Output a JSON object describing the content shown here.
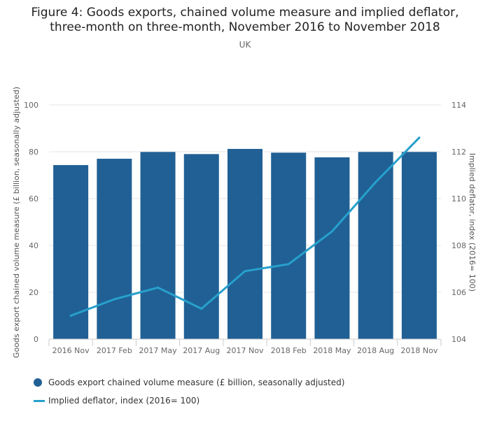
{
  "title_line1": "Figure 4: Goods exports, chained volume measure and implied deflator,",
  "title_line2": "three-month on three-month, November 2016 to November 2018",
  "subtitle": "UK",
  "colors": {
    "bar": "#206095",
    "line": "#27a0cc",
    "grid": "#e6e6e6",
    "axis": "#cccccc"
  },
  "chart_data": {
    "type": "bar",
    "categories": [
      "2016 Nov",
      "2017 Feb",
      "2017 May",
      "2017 Aug",
      "2017 Nov",
      "2018 Feb",
      "2018 May",
      "2018 Aug",
      "2018 Nov"
    ],
    "ylabel": "Goods export chained volume measure (£ billion, seasonally adjusted)",
    "y2label": "Implied deflator, index (2016= 100)",
    "ylim": [
      0,
      100
    ],
    "y2lim": [
      104,
      114
    ],
    "yticks": [
      0,
      20,
      40,
      60,
      80,
      100
    ],
    "y2ticks": [
      104,
      106,
      108,
      110,
      112,
      114
    ],
    "grid": true,
    "legend_position": "bottom-left",
    "series": [
      {
        "name": "Goods export chained volume measure (£ billion, seasonally adjusted)",
        "type": "bar",
        "axis": "left",
        "values": [
          74.3,
          77.0,
          79.9,
          79.0,
          81.2,
          79.6,
          77.6,
          79.9,
          79.9
        ]
      },
      {
        "name": "Implied deflator, index (2016= 100)",
        "type": "line",
        "axis": "right",
        "values": [
          105.0,
          105.7,
          106.2,
          105.3,
          106.9,
          107.2,
          108.6,
          110.7,
          112.6
        ]
      }
    ]
  }
}
